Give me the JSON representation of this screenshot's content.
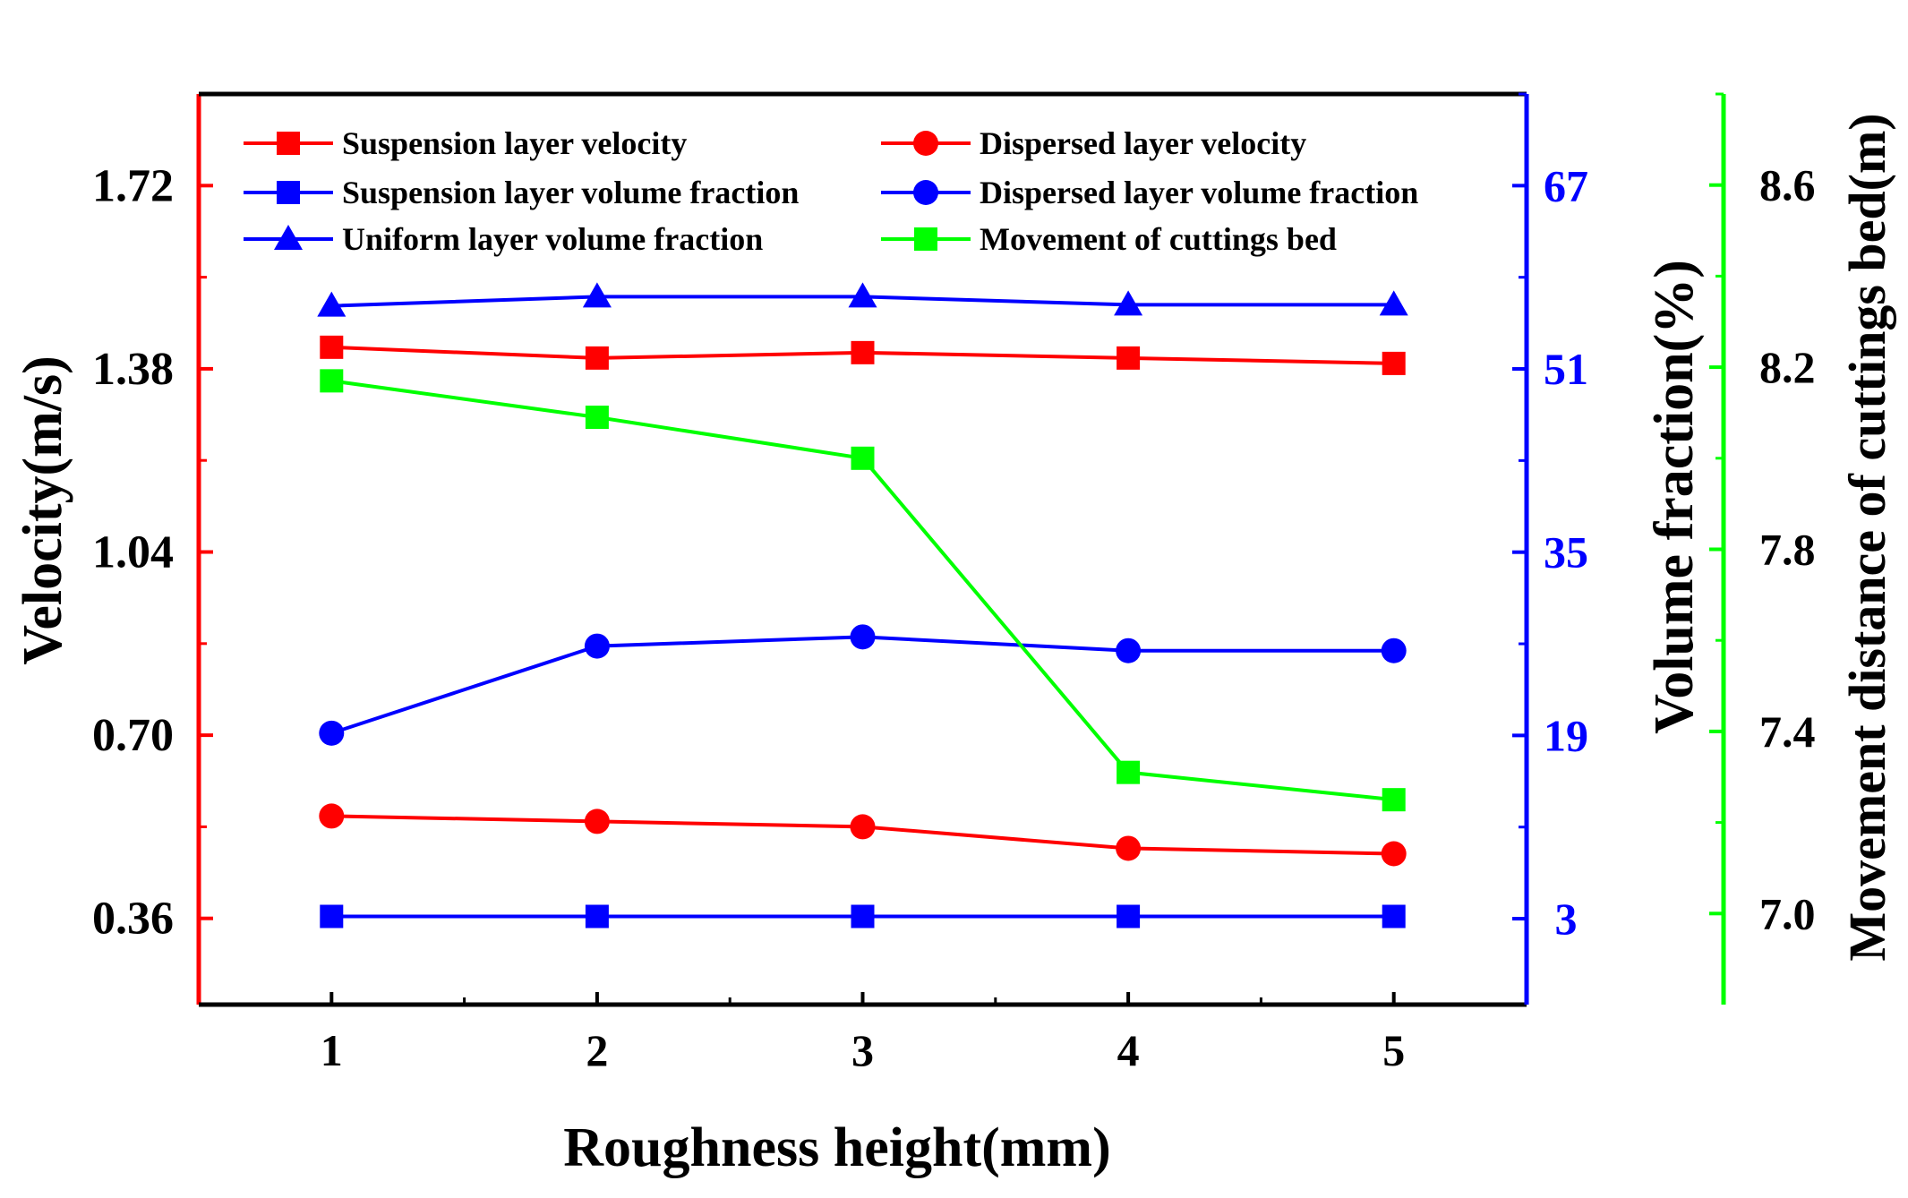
{
  "chart_data": {
    "type": "line",
    "x": [
      1,
      2,
      3,
      4,
      5
    ],
    "xlabel": "Roughness height(mm)",
    "x_ticks": [
      "1",
      "2",
      "3",
      "4",
      "5"
    ],
    "xlim": [
      0.5,
      5.5
    ],
    "axes": {
      "velocity": {
        "label": "Velocity(m/s)",
        "color": "#ff0000",
        "tick_color": "#000000",
        "ticks": [
          0.36,
          0.7,
          1.04,
          1.38,
          1.72
        ],
        "tick_labels": [
          "0.36",
          "0.70",
          "1.04",
          "1.38",
          "1.72"
        ],
        "ylim": [
          0.2,
          1.89
        ]
      },
      "volume": {
        "label": "Volume fraction(%)",
        "color": "#0000ff",
        "tick_color": "#0000ff",
        "ticks": [
          3,
          19,
          35,
          51,
          67
        ],
        "tick_labels": [
          "3",
          "19",
          "35",
          "51",
          "67"
        ],
        "ylim": [
          -4.5,
          75.0
        ]
      },
      "movement": {
        "label": "Movement distance of cuttings bed(m)",
        "color": "#00ff00",
        "tick_color": "#000000",
        "ticks": [
          7.0,
          7.4,
          7.8,
          8.2,
          8.6
        ],
        "tick_labels": [
          "7.0",
          "7.4",
          "7.8",
          "8.2",
          "8.6"
        ],
        "ylim": [
          6.8,
          8.8
        ]
      }
    },
    "series": [
      {
        "name": "Suspension layer velocity",
        "axis": "velocity",
        "color": "#ff0000",
        "marker": "square",
        "values": [
          1.42,
          1.4,
          1.41,
          1.4,
          1.39
        ]
      },
      {
        "name": "Dispersed layer velocity",
        "axis": "velocity",
        "color": "#ff0000",
        "marker": "circle",
        "values": [
          0.55,
          0.54,
          0.53,
          0.49,
          0.48
        ]
      },
      {
        "name": "Suspension layer volume fraction",
        "axis": "volume",
        "color": "#0000ff",
        "marker": "square",
        "values": [
          3.2,
          3.2,
          3.2,
          3.2,
          3.2
        ]
      },
      {
        "name": "Dispersed layer volume fraction",
        "axis": "volume",
        "color": "#0000ff",
        "marker": "circle",
        "values": [
          19.2,
          26.8,
          27.6,
          26.4,
          26.4
        ]
      },
      {
        "name": "Uniform layer volume fraction",
        "axis": "volume",
        "color": "#0000ff",
        "marker": "triangle",
        "values": [
          56.5,
          57.3,
          57.3,
          56.6,
          56.6
        ]
      },
      {
        "name": "Movement of cuttings bed",
        "axis": "movement",
        "color": "#00ff00",
        "marker": "square",
        "values": [
          8.17,
          8.09,
          8.0,
          7.31,
          7.25
        ]
      }
    ],
    "legend": {
      "placement": "top",
      "columns": 2
    },
    "grid": false
  }
}
